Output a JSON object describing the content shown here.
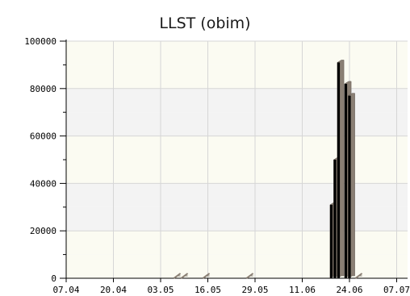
{
  "chart_data": {
    "type": "bar",
    "title": "LLST (obim)",
    "xlabel": "",
    "ylabel": "",
    "ylim": [
      0,
      100000
    ],
    "y_ticks": [
      "0",
      "20000",
      "40000",
      "60000",
      "80000",
      "100000"
    ],
    "x_ticks": [
      {
        "date": "2014-04-07",
        "label": "07.04"
      },
      {
        "date": "2014-04-20",
        "label": "20.04"
      },
      {
        "date": "2014-05-03",
        "label": "03.05"
      },
      {
        "date": "2014-05-16",
        "label": "16.05"
      },
      {
        "date": "2014-05-29",
        "label": "29.05"
      },
      {
        "date": "2014-06-11",
        "label": "11.06"
      },
      {
        "date": "2014-06-24",
        "label": "24.06"
      },
      {
        "date": "2014-07-07",
        "label": "07.07"
      }
    ],
    "x_range": [
      "2014-04-07",
      "2014-07-10"
    ],
    "grid": true,
    "bar_color": "#000000",
    "shadow_color": "#8a7f74",
    "plot_bg_colors": [
      "#f3f3f3",
      "#fbfbf2"
    ],
    "series": [
      {
        "values": [
          {
            "x": "2014-05-07",
            "y": 0
          },
          {
            "x": "2014-05-09",
            "y": 0
          },
          {
            "x": "2014-05-15",
            "y": 0
          },
          {
            "x": "2014-05-27",
            "y": 0
          },
          {
            "x": "2014-06-19",
            "y": 31000
          },
          {
            "x": "2014-06-20",
            "y": 50000
          },
          {
            "x": "2014-06-21",
            "y": 91000
          },
          {
            "x": "2014-06-23",
            "y": 82000
          },
          {
            "x": "2014-06-24",
            "y": 77000
          },
          {
            "x": "2014-06-26",
            "y": 0
          }
        ]
      }
    ]
  }
}
